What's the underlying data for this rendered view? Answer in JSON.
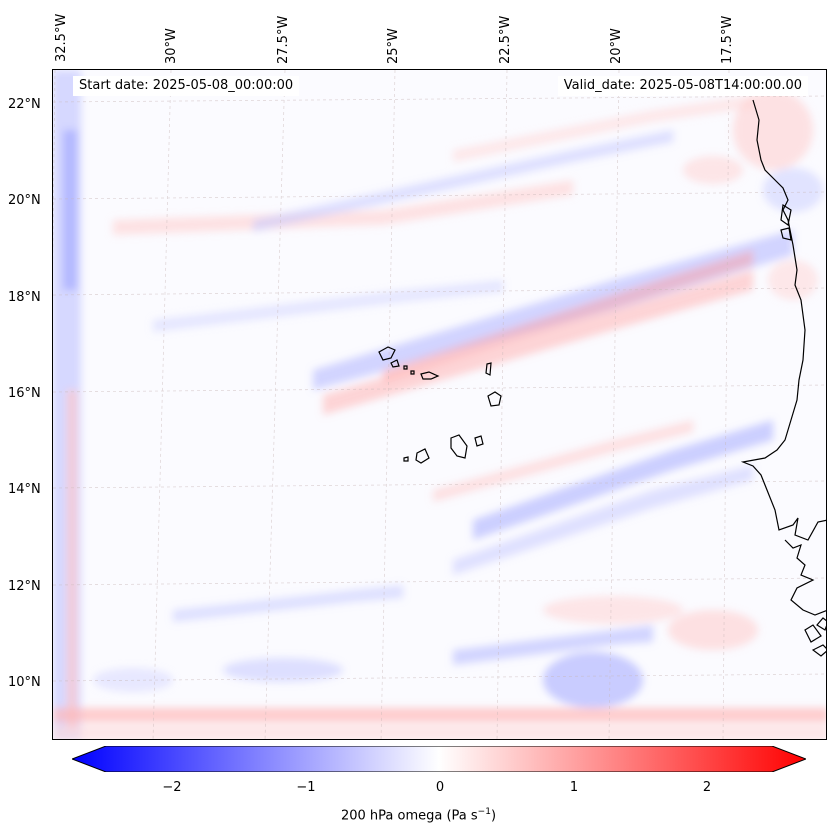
{
  "map": {
    "type": "contour-map",
    "lon_labels": [
      "32.5°W",
      "30°W",
      "27.5°W",
      "25°W",
      "22.5°W",
      "20°W",
      "17.5°W"
    ],
    "lat_labels": [
      "22°N",
      "20°N",
      "18°N",
      "16°N",
      "14°N",
      "12°N",
      "10°N"
    ],
    "start_date": "Start date: 2025-05-08_00:00:00",
    "valid_date": "Valid_date: 2025-05-08T14:00:00.00",
    "gridlines": true
  },
  "colorbar": {
    "label_text": "200 hPa omega (Pa s",
    "label_sup": "−1",
    "label_close": ")",
    "ticks": [
      "−2",
      "−1",
      "0",
      "1",
      "2"
    ],
    "range": [
      -2.5,
      2.5
    ],
    "colormap": "bwr",
    "extend": "both"
  },
  "colors": {
    "negative": "#0000ff",
    "zero": "#ffffff",
    "positive": "#ff0000",
    "coast": "#000000"
  }
}
